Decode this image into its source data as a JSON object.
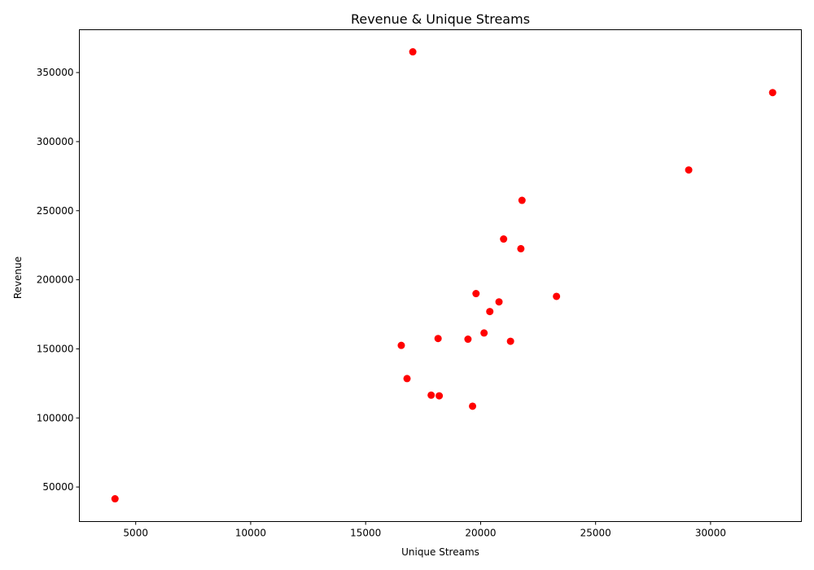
{
  "chart_data": {
    "type": "scatter",
    "title": "Revenue & Unique Streams",
    "xlabel": "Unique Streams",
    "ylabel": "Revenue",
    "xlim": [
      2550,
      33950
    ],
    "ylim": [
      25000,
      381000
    ],
    "xticks": [
      5000,
      10000,
      15000,
      20000,
      25000,
      30000
    ],
    "yticks": [
      50000,
      100000,
      150000,
      200000,
      250000,
      300000,
      350000
    ],
    "grid": false,
    "marker_color": "#ff0000",
    "points": [
      {
        "x": 17050,
        "y": 365000
      },
      {
        "x": 32700,
        "y": 335500
      },
      {
        "x": 29050,
        "y": 279500
      },
      {
        "x": 21800,
        "y": 257500
      },
      {
        "x": 21000,
        "y": 229500
      },
      {
        "x": 21750,
        "y": 222500
      },
      {
        "x": 19800,
        "y": 190000
      },
      {
        "x": 23300,
        "y": 188000
      },
      {
        "x": 20800,
        "y": 184000
      },
      {
        "x": 20400,
        "y": 177000
      },
      {
        "x": 20150,
        "y": 161500
      },
      {
        "x": 18150,
        "y": 157500
      },
      {
        "x": 19450,
        "y": 157000
      },
      {
        "x": 21300,
        "y": 155500
      },
      {
        "x": 16550,
        "y": 152500
      },
      {
        "x": 16800,
        "y": 128500
      },
      {
        "x": 17850,
        "y": 116500
      },
      {
        "x": 18200,
        "y": 116000
      },
      {
        "x": 19650,
        "y": 108500
      },
      {
        "x": 4100,
        "y": 41500
      }
    ]
  }
}
